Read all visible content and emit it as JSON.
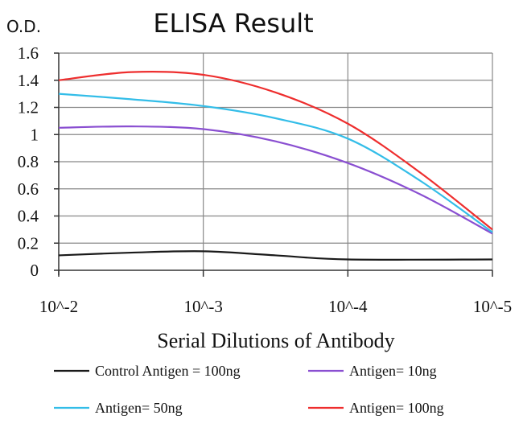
{
  "chart_data": {
    "type": "line",
    "title": "ELISA Result",
    "ylabel": "O.D.",
    "xlabel": "Serial Dilutions of Antibody",
    "categories": [
      "10^-2",
      "10^-3",
      "10^-4",
      "10^-5"
    ],
    "ylim": [
      0,
      1.6
    ],
    "yticks": [
      "0",
      "0.2",
      "0.4",
      "0.6",
      "0.8",
      "1",
      "1.2",
      "1.4",
      "1.6"
    ],
    "grid": true,
    "legend_position": "bottom",
    "series": [
      {
        "name": "Control Antigen = 100ng",
        "color": "#1a1a1a",
        "points": [
          [
            0,
            0.11
          ],
          [
            0.5,
            0.13
          ],
          [
            1,
            0.14
          ],
          [
            1.5,
            0.11
          ],
          [
            2,
            0.08
          ],
          [
            3,
            0.08
          ]
        ]
      },
      {
        "name": "Antigen= 10ng",
        "color": "#8a4fd1",
        "points": [
          [
            0,
            1.05
          ],
          [
            0.5,
            1.06
          ],
          [
            1,
            1.04
          ],
          [
            1.5,
            0.95
          ],
          [
            2,
            0.79
          ],
          [
            2.5,
            0.56
          ],
          [
            3,
            0.27
          ]
        ]
      },
      {
        "name": "Antigen= 50ng",
        "color": "#33bde8",
        "points": [
          [
            0,
            1.3
          ],
          [
            0.5,
            1.26
          ],
          [
            1,
            1.21
          ],
          [
            1.5,
            1.12
          ],
          [
            2,
            0.97
          ],
          [
            2.5,
            0.66
          ],
          [
            3,
            0.28
          ]
        ]
      },
      {
        "name": "Antigen= 100ng",
        "color": "#ee2e2e",
        "points": [
          [
            0,
            1.4
          ],
          [
            0.5,
            1.46
          ],
          [
            1,
            1.44
          ],
          [
            1.5,
            1.31
          ],
          [
            2,
            1.08
          ],
          [
            2.5,
            0.72
          ],
          [
            3,
            0.3
          ]
        ]
      }
    ],
    "legend_order": [
      0,
      1,
      2,
      3
    ]
  }
}
